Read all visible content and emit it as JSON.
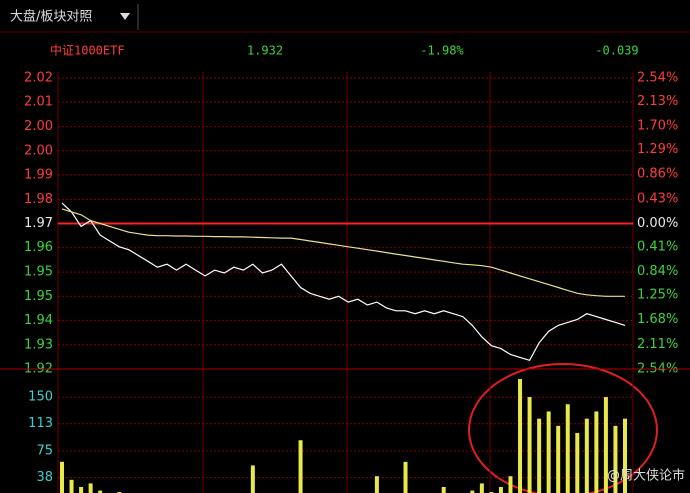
{
  "header": {
    "title": "大盘/板块对照"
  },
  "info": {
    "name": "中证1000ETF",
    "price": "1.932",
    "change_pct": "-1.98%",
    "change": "-0.039"
  },
  "watermark": "@周大侠论市",
  "chart_data": {
    "type": "line",
    "ylim": [
      1.921,
      2.021
    ],
    "yticks": [
      {
        "value": 2.021,
        "label": "2.02"
      },
      {
        "value": 2.0127,
        "label": "2.01"
      },
      {
        "value": 2.0043,
        "label": "2.00"
      },
      {
        "value": 1.996,
        "label": "2.00"
      },
      {
        "value": 1.9877,
        "label": "1.99"
      },
      {
        "value": 1.9793,
        "label": "1.98"
      },
      {
        "value": 1.971,
        "label": "1.97"
      },
      {
        "value": 1.9627,
        "label": "1.96"
      },
      {
        "value": 1.9543,
        "label": "1.95"
      },
      {
        "value": 1.946,
        "label": "1.95"
      },
      {
        "value": 1.9377,
        "label": "1.94"
      },
      {
        "value": 1.9293,
        "label": "1.93"
      },
      {
        "value": 1.921,
        "label": "1.92"
      }
    ],
    "y2lim": [
      -2.54,
      2.54
    ],
    "y2ticks": [
      {
        "value": 2.54,
        "label": "2.54%"
      },
      {
        "value": 2.13,
        "label": "2.13%"
      },
      {
        "value": 1.7,
        "label": "1.70%"
      },
      {
        "value": 1.29,
        "label": "1.29%"
      },
      {
        "value": 0.86,
        "label": "0.86%"
      },
      {
        "value": 0.43,
        "label": "0.43%"
      },
      {
        "value": 0,
        "label": "0.00%"
      },
      {
        "value": -0.41,
        "label": "0.41%"
      },
      {
        "value": -0.84,
        "label": "0.84%"
      },
      {
        "value": -1.25,
        "label": "1.25%"
      },
      {
        "value": -1.68,
        "label": "1.68%"
      },
      {
        "value": -2.11,
        "label": "2.11%"
      },
      {
        "value": -2.54,
        "label": "2.54%"
      }
    ],
    "series": [
      {
        "color": "#ffffff",
        "values": [
          1.978,
          1.975,
          1.97,
          1.972,
          1.967,
          1.965,
          1.963,
          1.962,
          1.96,
          1.958,
          1.956,
          1.957,
          1.955,
          1.957,
          1.955,
          1.953,
          1.955,
          1.954,
          1.956,
          1.955,
          1.957,
          1.954,
          1.955,
          1.957,
          1.953,
          1.949,
          1.947,
          1.946,
          1.945,
          1.946,
          1.944,
          1.945,
          1.943,
          1.944,
          1.942,
          1.941,
          1.941,
          1.94,
          1.941,
          1.94,
          1.941,
          1.94,
          1.939,
          1.936,
          1.932,
          1.929,
          1.928,
          1.926,
          1.925,
          1.924,
          1.93,
          1.934,
          1.936,
          1.937,
          1.938,
          1.94,
          1.939,
          1.938,
          1.937,
          1.936
        ]
      },
      {
        "color": "#e6e28a",
        "values": [
          1.976,
          1.975,
          1.974,
          1.972,
          1.971,
          1.97,
          1.969,
          1.968,
          1.9675,
          1.967,
          1.9668,
          1.9668,
          1.9667,
          1.9667,
          1.9666,
          1.9666,
          1.9665,
          1.9665,
          1.9664,
          1.9664,
          1.9663,
          1.9662,
          1.9661,
          1.966,
          1.966,
          1.9655,
          1.965,
          1.9645,
          1.964,
          1.9635,
          1.963,
          1.9625,
          1.962,
          1.9615,
          1.961,
          1.9605,
          1.96,
          1.9595,
          1.959,
          1.9585,
          1.958,
          1.9575,
          1.957,
          1.9568,
          1.9565,
          1.956,
          1.955,
          1.954,
          1.953,
          1.952,
          1.951,
          1.95,
          1.949,
          1.948,
          1.947,
          1.9465,
          1.9462,
          1.946,
          1.946,
          1.946
        ]
      }
    ],
    "volume": {
      "color": "#e8e84a",
      "ylim": [
        0,
        189
      ],
      "yticks": [
        38,
        75,
        113,
        150
      ],
      "values": [
        60,
        35,
        25,
        30,
        20,
        15,
        18,
        12,
        14,
        10,
        12,
        8,
        10,
        9,
        12,
        8,
        10,
        7,
        9,
        8,
        55,
        10,
        8,
        12,
        15,
        90,
        14,
        10,
        12,
        8,
        10,
        9,
        14,
        40,
        12,
        10,
        60,
        9,
        8,
        10,
        25,
        12,
        14,
        20,
        30,
        18,
        25,
        40,
        175,
        150,
        120,
        130,
        110,
        140,
        100,
        120,
        130,
        150,
        110,
        120
      ]
    }
  }
}
